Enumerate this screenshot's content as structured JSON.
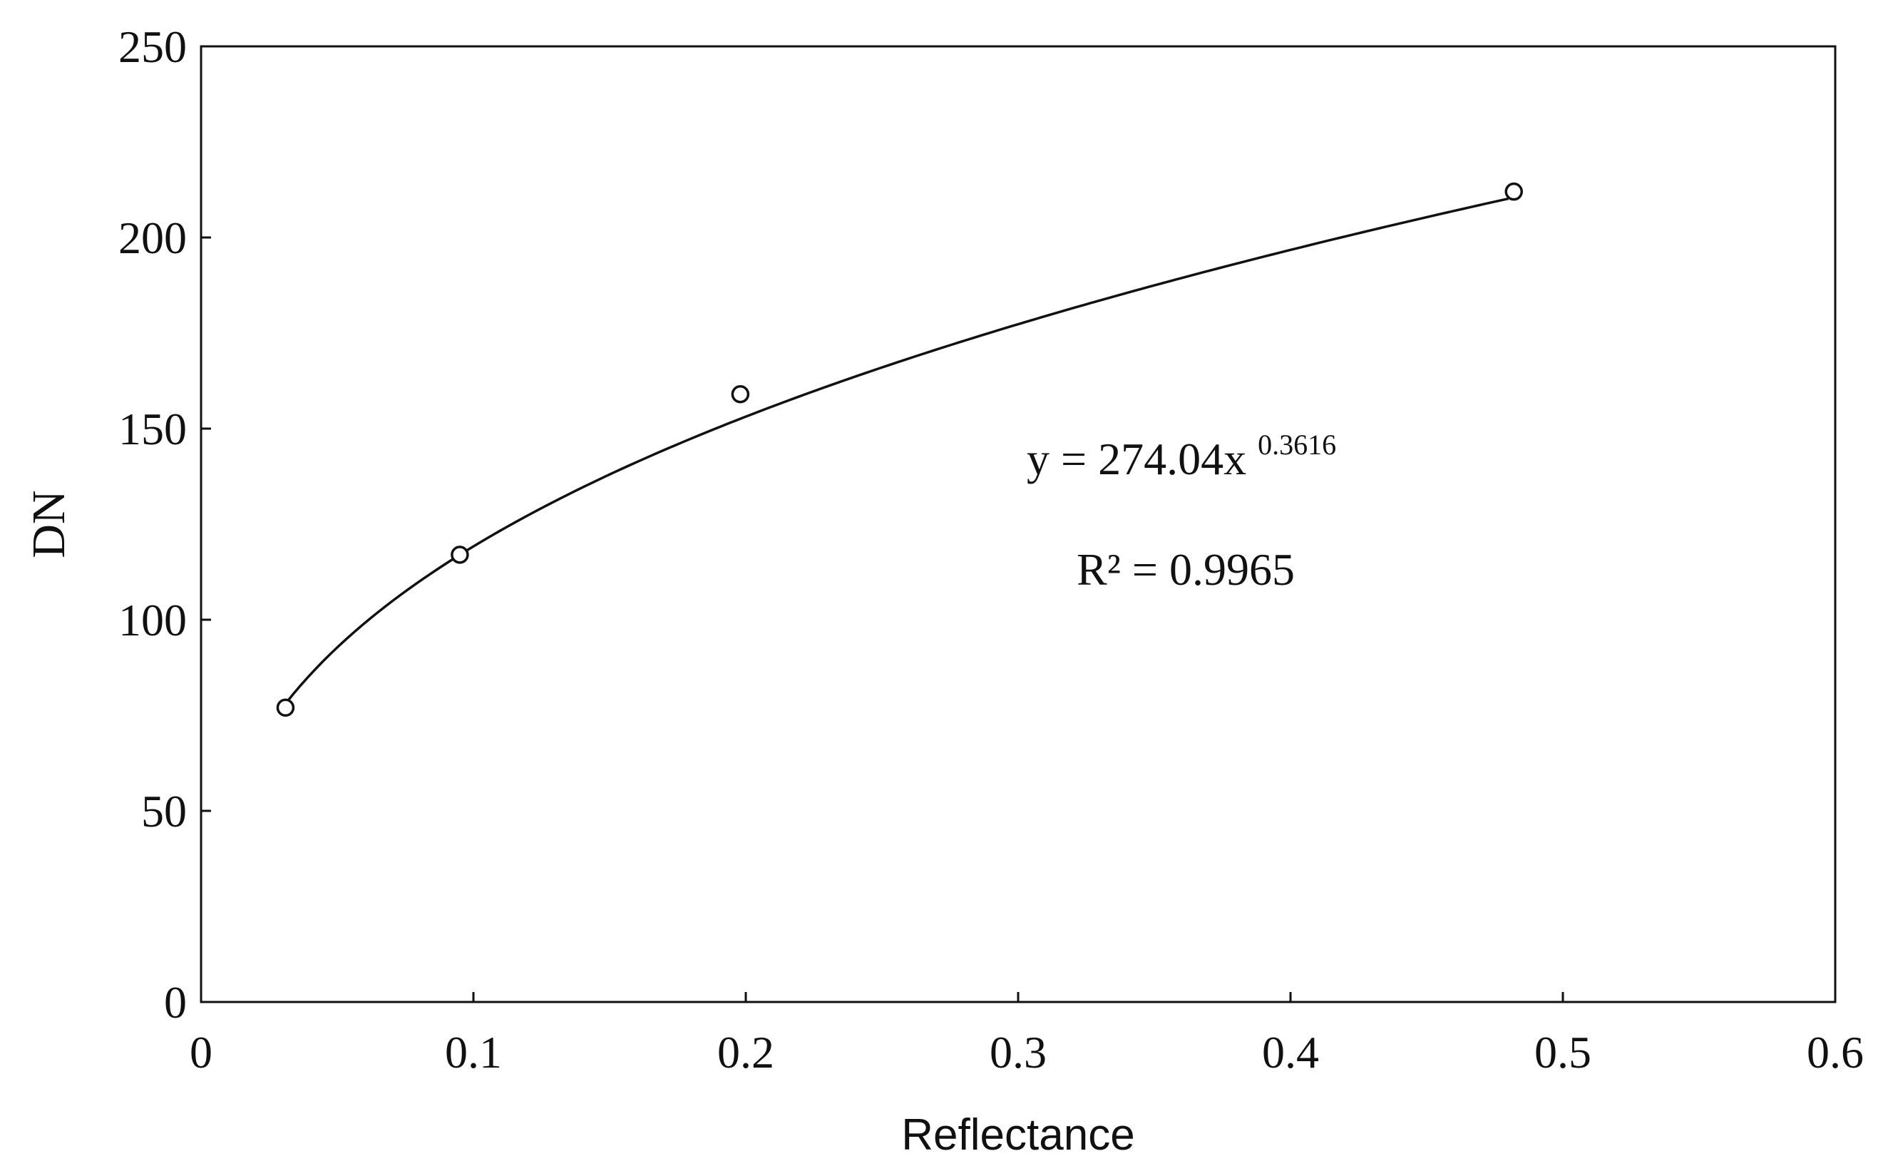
{
  "chart_data": {
    "type": "scatter",
    "title": "",
    "xlabel": "Reflectance",
    "ylabel": "DN",
    "xlim": [
      0,
      0.6
    ],
    "ylim": [
      0,
      250
    ],
    "x_ticks": [
      "0",
      "0.1",
      "0.2",
      "0.3",
      "0.4",
      "0.5",
      "0.6"
    ],
    "y_ticks": [
      "0",
      "50",
      "100",
      "150",
      "200",
      "250"
    ],
    "grid": false,
    "legend": "none",
    "series": [
      {
        "marker": "open-circle",
        "points": [
          {
            "x": 0.031,
            "y": 77
          },
          {
            "x": 0.095,
            "y": 117
          },
          {
            "x": 0.198,
            "y": 159
          },
          {
            "x": 0.482,
            "y": 212
          }
        ]
      }
    ],
    "trendline": {
      "type": "power",
      "coefficient": 274.04,
      "exponent": 0.3616,
      "x_range": [
        0.031,
        0.48
      ]
    },
    "annotations": {
      "equation_main": "y = 274.04x",
      "equation_exponent": "0.3616",
      "r_squared": "R² = 0.9965"
    },
    "colors": {
      "ink": "#111111",
      "background": "#ffffff"
    }
  }
}
